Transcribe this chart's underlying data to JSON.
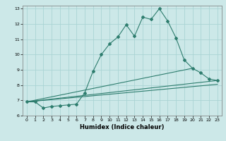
{
  "title": "",
  "xlabel": "Humidex (Indice chaleur)",
  "bg_color": "#cce8e8",
  "grid_color": "#aad4d4",
  "line_color": "#2e7d6e",
  "xlim": [
    -0.5,
    23.5
  ],
  "ylim": [
    6,
    13.2
  ],
  "xticks": [
    0,
    1,
    2,
    3,
    4,
    5,
    6,
    7,
    8,
    9,
    10,
    11,
    12,
    13,
    14,
    15,
    16,
    17,
    18,
    19,
    20,
    21,
    22,
    23
  ],
  "yticks": [
    6,
    7,
    8,
    9,
    10,
    11,
    12,
    13
  ],
  "series": [
    [
      0,
      6.9
    ],
    [
      1,
      6.9
    ],
    [
      2,
      6.5
    ],
    [
      3,
      6.6
    ],
    [
      4,
      6.65
    ],
    [
      5,
      6.7
    ],
    [
      6,
      6.75
    ],
    [
      7,
      7.5
    ],
    [
      8,
      8.9
    ],
    [
      9,
      10.0
    ],
    [
      10,
      10.7
    ],
    [
      11,
      11.15
    ],
    [
      12,
      11.95
    ],
    [
      13,
      11.2
    ],
    [
      14,
      12.45
    ],
    [
      15,
      12.3
    ],
    [
      16,
      13.0
    ],
    [
      17,
      12.2
    ],
    [
      18,
      11.1
    ],
    [
      19,
      9.65
    ],
    [
      20,
      9.1
    ],
    [
      21,
      8.8
    ],
    [
      22,
      8.4
    ],
    [
      23,
      8.3
    ]
  ],
  "line2": [
    [
      0,
      6.9
    ],
    [
      23,
      8.3
    ]
  ],
  "line3": [
    [
      0,
      6.9
    ],
    [
      20,
      9.1
    ]
  ],
  "line4": [
    [
      0,
      6.9
    ],
    [
      23,
      8.05
    ]
  ]
}
